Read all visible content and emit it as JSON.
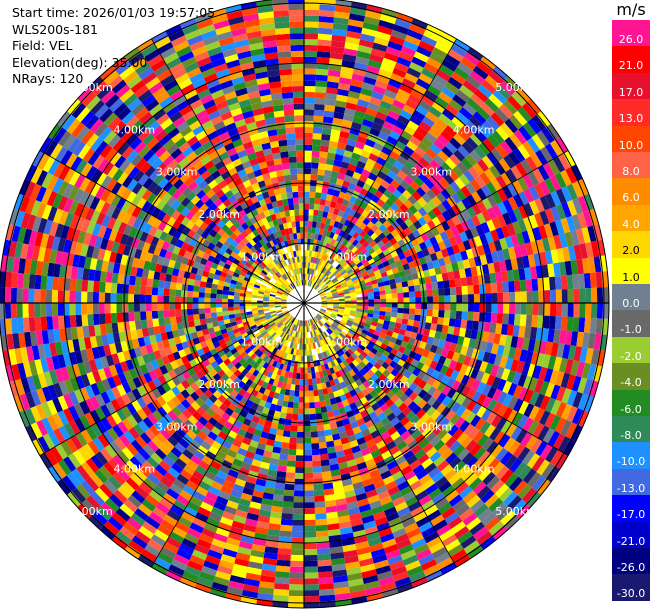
{
  "info": {
    "start_time": "Start time: 2026/01/03 19:57:05",
    "instrument": "WLS200s-181",
    "field": "Field: VEL",
    "elevation": "Elevation(deg): 35.00",
    "nrays": "NRays: 120"
  },
  "colorbar": {
    "unit": "m/s",
    "labels": [
      "26.0",
      "21.0",
      "17.0",
      "13.0",
      "10.0",
      "8.0",
      "6.0",
      "4.0",
      "2.0",
      "1.0",
      "0.0",
      "-1.0",
      "-2.0",
      "-4.0",
      "-6.0",
      "-8.0",
      "-10.0",
      "-13.0",
      "-17.0",
      "-21.0",
      "-26.0",
      "-30.0"
    ],
    "colors": [
      "#ff1493",
      "#ff0000",
      "#e8112d",
      "#ff2a2a",
      "#ff4500",
      "#ff6347",
      "#ff8c00",
      "#ffa500",
      "#ffd700",
      "#ffff00",
      "#708090",
      "#696969",
      "#9acd32",
      "#6b8e23",
      "#228b22",
      "#2e8b57",
      "#1e90ff",
      "#4169e1",
      "#0000ff",
      "#0000cd",
      "#000080",
      "#191970"
    ]
  },
  "chart_data": {
    "type": "heatmap",
    "plot_kind": "PPI (plan position indicator), polar",
    "field": "VEL",
    "unit": "m/s",
    "range_rings_km": [
      "1.00km",
      "2.00km",
      "3.00km",
      "4.00km",
      "5.00km"
    ],
    "nrays": 120,
    "elevation_deg": 35.0,
    "color_scale": {
      "boundaries": [
        26.0,
        21.0,
        17.0,
        13.0,
        10.0,
        8.0,
        6.0,
        4.0,
        2.0,
        1.0,
        0.0,
        -1.0,
        -2.0,
        -4.0,
        -6.0,
        -8.0,
        -10.0,
        -13.0,
        -17.0,
        -21.0,
        -26.0,
        -30.0
      ]
    },
    "description_of_values": "Velocity field is noisy outside ~1 km; near-center returns dominated by 2–4 m/s (yellow) and low magnitude values."
  }
}
